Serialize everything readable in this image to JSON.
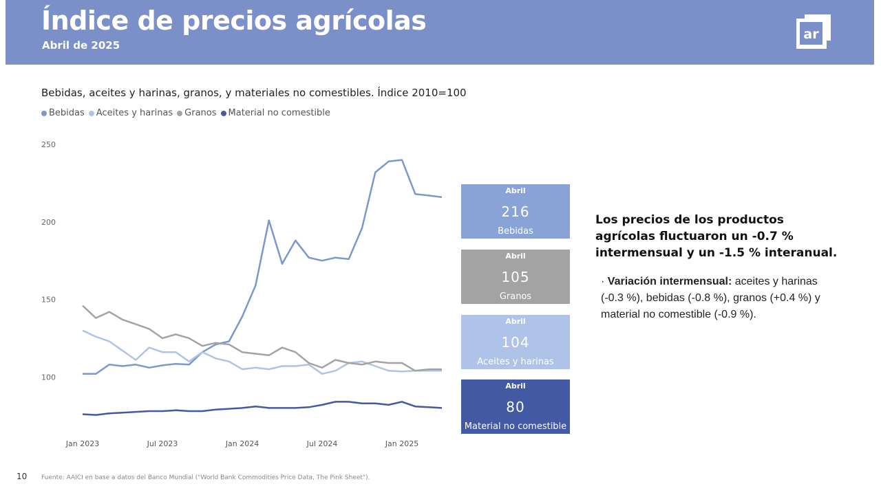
{
  "header": {
    "title": "Índice de precios agrícolas",
    "subtitle": "Abril de 2025",
    "logo_text": "ar"
  },
  "chart_title": "Bebidas, aceites y harinas, granos, y materiales no comestibles. Índice 2010=100",
  "legend": [
    {
      "label": "Bebidas",
      "color": "#7b98cc"
    },
    {
      "label": "Aceites y harinas",
      "color": "#aec3e8"
    },
    {
      "label": "Granos",
      "color": "#a3a3a3"
    },
    {
      "label": "Material no comestible",
      "color": "#4459a3"
    }
  ],
  "chart_data": {
    "type": "line",
    "title": "Bebidas, aceites y harinas, granos, y materiales no comestibles. Índice 2010=100",
    "x": [
      "2023-01",
      "2023-02",
      "2023-03",
      "2023-04",
      "2023-05",
      "2023-06",
      "2023-07",
      "2023-08",
      "2023-09",
      "2023-10",
      "2023-11",
      "2023-12",
      "2024-01",
      "2024-02",
      "2024-03",
      "2024-04",
      "2024-05",
      "2024-06",
      "2024-07",
      "2024-08",
      "2024-09",
      "2024-10",
      "2024-11",
      "2024-12",
      "2025-01",
      "2025-02",
      "2025-03",
      "2025-04"
    ],
    "x_tick_labels": [
      {
        "x": "2023-01",
        "label": "Jan 2023"
      },
      {
        "x": "2023-07",
        "label": "Jul 2023"
      },
      {
        "x": "2024-01",
        "label": "Jan 2024"
      },
      {
        "x": "2024-07",
        "label": "Jul 2024"
      },
      {
        "x": "2025-01",
        "label": "Jan 2025"
      }
    ],
    "y_ticks": [
      100,
      150,
      200,
      250
    ],
    "ylim": [
      70,
      250
    ],
    "grid": false,
    "legend_position": "top-left",
    "series": [
      {
        "name": "Bebidas",
        "color": "#7b98cc",
        "values": [
          102,
          102,
          108,
          107,
          108,
          106,
          107.5,
          108.5,
          108,
          116,
          121,
          123,
          139,
          159,
          201,
          173,
          188,
          177,
          175,
          177,
          176,
          196,
          232,
          239,
          240,
          218,
          217,
          216
        ]
      },
      {
        "name": "Aceites y harinas",
        "color": "#aec3e8",
        "values": [
          130,
          126,
          123,
          117,
          111,
          119,
          116,
          116,
          110,
          116,
          112,
          110,
          105,
          106,
          105,
          107,
          107,
          108,
          102,
          104,
          109,
          110,
          107,
          104,
          103.5,
          104,
          104,
          104
        ]
      },
      {
        "name": "Granos",
        "color": "#a3a3a3",
        "values": [
          146,
          138,
          142,
          137,
          134,
          131,
          125,
          127.5,
          125,
          120,
          122,
          121,
          116,
          115,
          114,
          119,
          116,
          109,
          106,
          111,
          109,
          108,
          110,
          109,
          109,
          104,
          105,
          105
        ]
      },
      {
        "name": "Material no comestible",
        "color": "#4459a3",
        "values": [
          76,
          75.5,
          76.5,
          77,
          77.5,
          78,
          78,
          78.5,
          78,
          78,
          79,
          79.5,
          80,
          81,
          80,
          80,
          80,
          80.5,
          82,
          84,
          84,
          83,
          83,
          82,
          84,
          81,
          80.5,
          80
        ]
      }
    ]
  },
  "kpis": [
    {
      "period": "Abril",
      "value": "216",
      "name": "Bebidas",
      "color": "#8aa3d6"
    },
    {
      "period": "Abril",
      "value": "105",
      "name": "Granos",
      "color": "#a3a3a3"
    },
    {
      "period": "Abril",
      "value": "104",
      "name": "Aceites y harinas",
      "color": "#afc3e8"
    },
    {
      "period": "Abril",
      "value": "80",
      "name": "Material no comestible",
      "color": "#4459a3"
    }
  ],
  "summary": "Los precios de los productos agrícolas fluctuaron un -0.7 % intermensual y un -1.5 %  interanual.",
  "bullet": {
    "marker": "·",
    "label": "Variación intermensual:",
    "text": " aceites y harinas (-0.3 %), bebidas (-0.8 %), granos (+0.4 %) y material no comestible (-0.9 %)."
  },
  "page_number": "10",
  "source": "Fuente: AAICI en base a datos del Banco Mundial (\"World Bank Commodities Price Data, The Pink Sheet\")."
}
